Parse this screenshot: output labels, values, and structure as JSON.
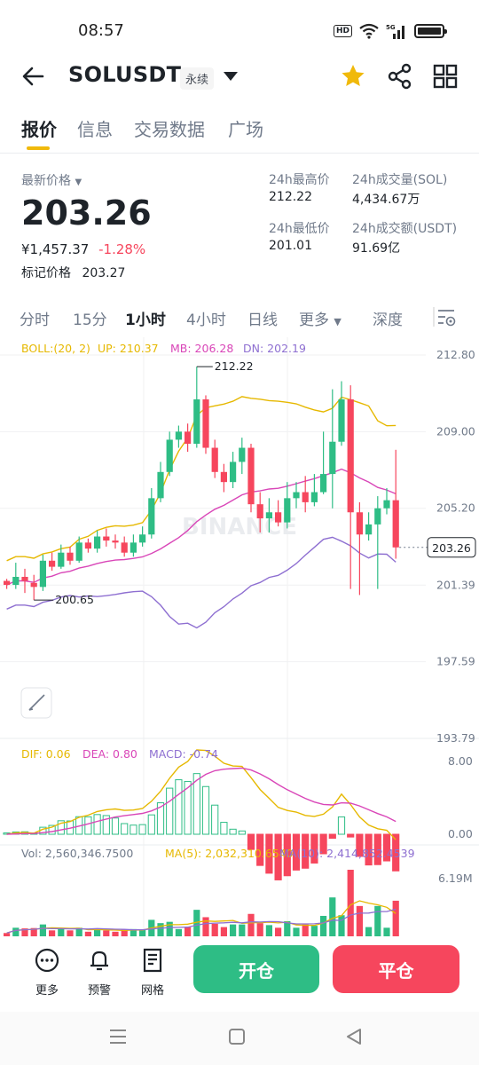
{
  "status_bar": {
    "time": "08:57",
    "hd": "HD",
    "network": "5G"
  },
  "header": {
    "symbol": "SOLUSDT",
    "contract_type": "永续"
  },
  "tabs": [
    {
      "label": "报价",
      "active": true
    },
    {
      "label": "信息",
      "active": false
    },
    {
      "label": "交易数据",
      "active": false
    },
    {
      "label": "广场",
      "active": false
    }
  ],
  "price": {
    "last_label": "最新价格",
    "last": "203.26",
    "cny": "¥1,457.37",
    "change": "-1.28%",
    "mark_label": "标记价格",
    "mark": "203.27"
  },
  "stats": {
    "high_label": "24h最高价",
    "high": "212.22",
    "low_label": "24h最低价",
    "low": "201.01",
    "vol_sol_label": "24h成交量(SOL)",
    "vol_sol": "4,434.67万",
    "vol_usdt_label": "24h成交额(USDT)",
    "vol_usdt": "91.69亿"
  },
  "intervals": [
    {
      "label": "分时",
      "active": false
    },
    {
      "label": "15分",
      "active": false
    },
    {
      "label": "1小时",
      "active": true
    },
    {
      "label": "4小时",
      "active": false
    },
    {
      "label": "日线",
      "active": false
    },
    {
      "label": "更多",
      "active": false
    },
    {
      "label": "深度",
      "active": false
    }
  ],
  "colors": {
    "up": "#2ebd85",
    "down": "#f6465d",
    "accent": "#f0b90b",
    "boll_up": "#e6b800",
    "boll_mb": "#d946b8",
    "boll_dn": "#8e6fd1"
  },
  "chart_data": {
    "type": "candlestick",
    "indicator_label": "BOLL:(20, 2)",
    "boll": {
      "up_label": "UP: 210.37",
      "mb_label": "MB: 206.28",
      "dn_label": "DN: 202.19"
    },
    "y_ticks": [
      "212.80",
      "209.00",
      "205.20",
      "201.39",
      "197.59",
      "193.79"
    ],
    "ylim": [
      193.79,
      212.8
    ],
    "current_price_label": "203.26",
    "max_label": "212.22",
    "min_label": "200.65",
    "watermark": "BINANCE",
    "candles": [
      [
        201.6,
        201.4,
        201.7,
        201.2
      ],
      [
        201.4,
        201.8,
        202.5,
        201.2
      ],
      [
        201.8,
        201.6,
        202.2,
        201.0
      ],
      [
        201.5,
        201.3,
        201.9,
        200.65
      ],
      [
        201.3,
        202.6,
        202.9,
        201.1
      ],
      [
        202.6,
        202.3,
        203.0,
        202.1
      ],
      [
        202.3,
        203.0,
        203.4,
        202.2
      ],
      [
        203.0,
        202.6,
        203.3,
        202.4
      ],
      [
        202.6,
        203.5,
        203.8,
        202.5
      ],
      [
        203.5,
        203.2,
        203.7,
        203.0
      ],
      [
        203.2,
        203.8,
        204.1,
        203.0
      ],
      [
        203.8,
        203.6,
        204.2,
        203.3
      ],
      [
        203.6,
        203.5,
        203.9,
        203.2
      ],
      [
        203.5,
        203.0,
        203.8,
        202.8
      ],
      [
        203.0,
        203.5,
        203.9,
        202.8
      ],
      [
        203.5,
        203.9,
        204.3,
        203.3
      ],
      [
        203.9,
        205.7,
        206.2,
        203.7
      ],
      [
        205.7,
        207.0,
        207.5,
        205.5
      ],
      [
        207.0,
        208.6,
        209.0,
        206.8
      ],
      [
        208.6,
        209.0,
        209.3,
        208.2
      ],
      [
        209.0,
        208.4,
        209.4,
        208.0
      ],
      [
        208.4,
        210.6,
        212.22,
        208.2
      ],
      [
        210.6,
        208.2,
        210.8,
        207.9
      ],
      [
        208.2,
        207.0,
        208.6,
        206.7
      ],
      [
        207.0,
        206.5,
        207.4,
        206.0
      ],
      [
        206.5,
        207.5,
        208.0,
        206.2
      ],
      [
        207.5,
        208.2,
        208.7,
        206.9
      ],
      [
        208.2,
        205.4,
        208.4,
        205.0
      ],
      [
        205.4,
        204.7,
        206.0,
        204.0
      ],
      [
        204.7,
        205.0,
        205.7,
        204.0
      ],
      [
        205.0,
        204.5,
        205.6,
        204.3
      ],
      [
        204.5,
        205.7,
        206.5,
        204.2
      ],
      [
        205.7,
        206.0,
        206.5,
        205.2
      ],
      [
        206.0,
        205.5,
        206.8,
        205.0
      ],
      [
        205.5,
        206.0,
        206.9,
        205.3
      ],
      [
        206.0,
        206.9,
        209.0,
        205.9
      ],
      [
        206.9,
        208.5,
        211.1,
        205.2
      ],
      [
        208.5,
        210.6,
        211.5,
        208.3
      ],
      [
        210.6,
        205.0,
        211.3,
        201.2
      ],
      [
        205.0,
        203.9,
        205.5,
        200.9
      ],
      [
        203.9,
        204.4,
        205.0,
        203.6
      ],
      [
        204.4,
        205.2,
        205.8,
        201.2
      ],
      [
        205.2,
        205.6,
        206.2,
        204.9
      ],
      [
        205.6,
        203.26,
        208.1,
        202.7
      ]
    ],
    "macd": {
      "dif_label": "DIF: 0.06",
      "dea_label": "DEA: 0.80",
      "macd_label": "MACD: -0.74",
      "y_ticks": [
        "8.00",
        "0.00"
      ]
    },
    "volume": {
      "vol_label": "Vol: 2,560,346.7500",
      "ma5_label": "MA(5): 2,032,310.6540",
      "ma10_label": "MA(10): 2,414,852.4539",
      "y_tick": "6.19M"
    }
  },
  "bottom": {
    "more": "更多",
    "alert": "预警",
    "grid": "网格",
    "open": "开仓",
    "close": "平仓"
  }
}
